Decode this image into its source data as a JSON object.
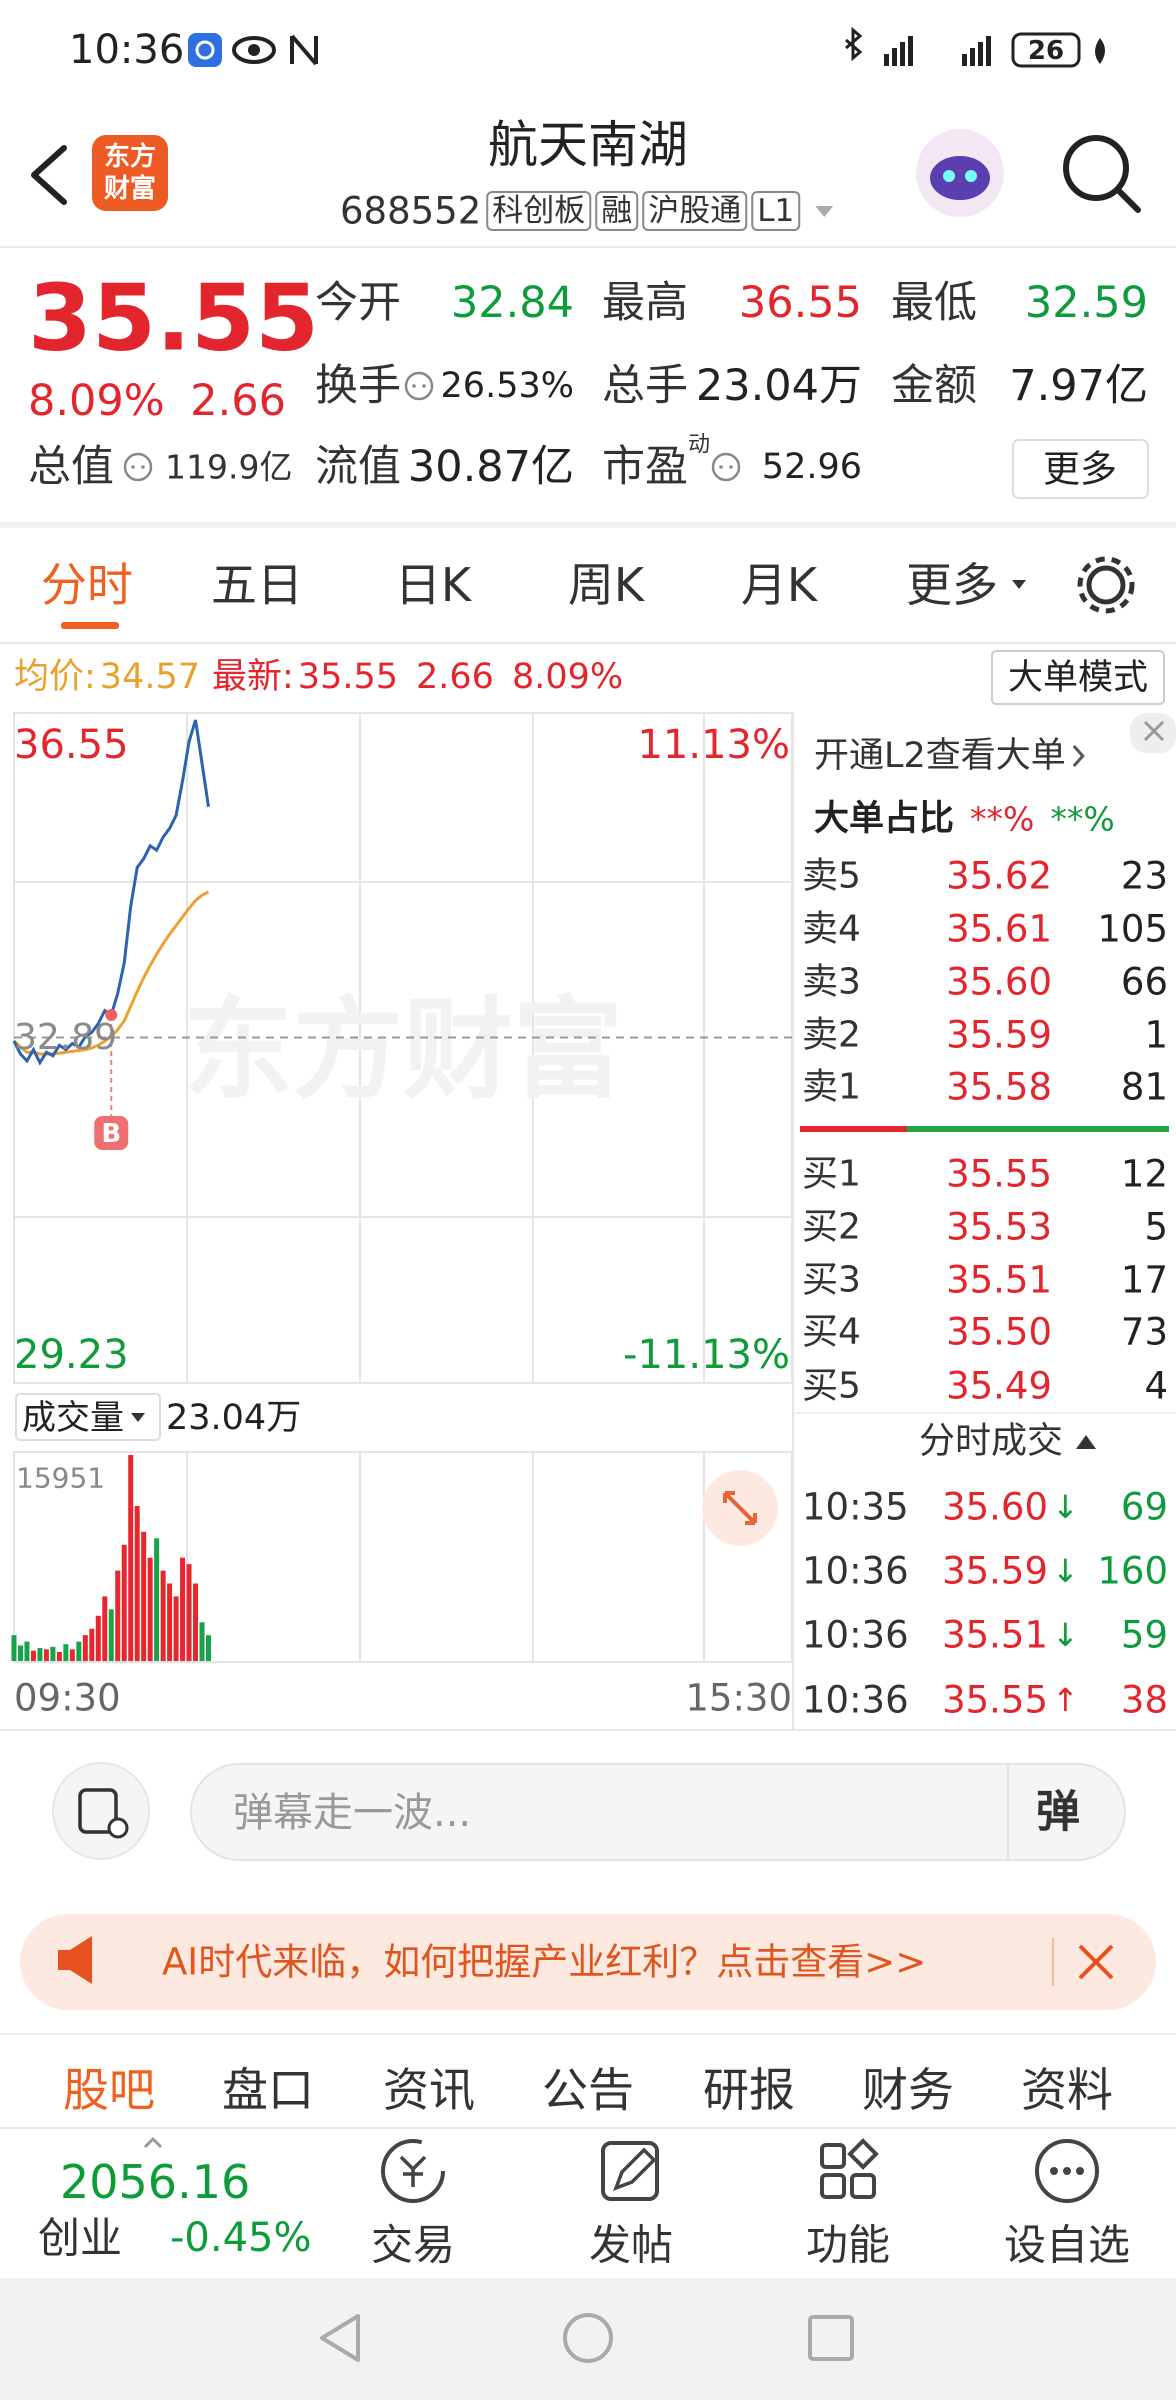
{
  "status_bar": {
    "time": "10:36",
    "battery": "26"
  },
  "header": {
    "logo": [
      "东方",
      "财富"
    ],
    "title": "航天南湖",
    "code": "688552",
    "tags": [
      "科创板",
      "融",
      "沪股通",
      "L1"
    ]
  },
  "quote": {
    "price": "35.55",
    "change_pct": "8.09%",
    "change": "2.66",
    "total_value_label": "总值",
    "total_value": "119.9亿",
    "fields": [
      {
        "label": "今开",
        "value": "32.84",
        "color": "#0e9b3a"
      },
      {
        "label": "最高",
        "value": "36.55",
        "color": "#e3262d"
      },
      {
        "label": "最低",
        "value": "32.59",
        "color": "#0e9b3a"
      },
      {
        "label": "换手",
        "value": "26.53%",
        "color": "#222222",
        "info_icon": true
      },
      {
        "label": "总手",
        "value": "23.04万",
        "color": "#222222"
      },
      {
        "label": "金额",
        "value": "7.97亿",
        "color": "#222222"
      },
      {
        "label": "流值",
        "value": "30.87亿",
        "color": "#222222"
      },
      {
        "label": "市盈",
        "sup": "动",
        "value": "52.96",
        "color": "#222222",
        "info_icon": true
      }
    ],
    "more": "更多"
  },
  "tabs": [
    "分时",
    "五日",
    "日K",
    "周K",
    "月K",
    "更多"
  ],
  "info": {
    "avg_label": "均价:",
    "avg": "34.57",
    "latest_label": "最新:",
    "latest": "35.55",
    "change": "2.66",
    "change_pct": "8.09%",
    "mode_button": "大单模式"
  },
  "intraday": {
    "high_label": "36.55",
    "low_label": "29.23",
    "high_pct": "11.13%",
    "low_pct": "-11.13%",
    "prev_close_label": "32.89",
    "watermark": "东方财富",
    "marker": "B",
    "ylim": [
      29.23,
      36.55
    ],
    "prev_close": 32.89,
    "price": [
      32.85,
      32.7,
      32.62,
      32.75,
      32.6,
      32.72,
      32.68,
      32.8,
      32.75,
      32.82,
      32.78,
      32.9,
      32.95,
      33.05,
      33.2,
      33.15,
      33.4,
      33.75,
      34.4,
      34.85,
      34.95,
      35.1,
      35.05,
      35.2,
      35.3,
      35.45,
      35.85,
      36.3,
      36.55,
      36.05,
      35.55
    ],
    "average": [
      32.85,
      32.78,
      32.72,
      32.72,
      32.7,
      32.7,
      32.7,
      32.71,
      32.72,
      32.73,
      32.74,
      32.75,
      32.77,
      32.8,
      32.85,
      32.9,
      32.98,
      33.08,
      33.25,
      33.42,
      33.58,
      33.72,
      33.85,
      33.97,
      34.08,
      34.18,
      34.28,
      34.38,
      34.47,
      34.53,
      34.57
    ],
    "volume_label": "成交量",
    "volume_total": "23.04万",
    "volume_max_label": "15951",
    "volume_ylim": [
      0,
      15951
    ],
    "volume": [
      2000,
      1200,
      1500,
      800,
      1000,
      900,
      1100,
      700,
      1300,
      900,
      1500,
      2000,
      2500,
      3500,
      5000,
      4000,
      7000,
      9000,
      15951,
      12000,
      10000,
      8000,
      9500,
      7000,
      6000,
      5000,
      8000,
      7500,
      6000,
      3000,
      2000
    ],
    "time_start": "09:30",
    "time_end": "15:30"
  },
  "order_book": {
    "link": "开通L2查看大单",
    "ratio_label": "大单占比",
    "ratio_sell": "**%",
    "ratio_buy": "**%",
    "asks": [
      {
        "label": "卖5",
        "price": "35.62",
        "qty": "23"
      },
      {
        "label": "卖4",
        "price": "35.61",
        "qty": "105"
      },
      {
        "label": "卖3",
        "price": "35.60",
        "qty": "66"
      },
      {
        "label": "卖2",
        "price": "35.59",
        "qty": "1"
      },
      {
        "label": "卖1",
        "price": "35.58",
        "qty": "81"
      }
    ],
    "bids": [
      {
        "label": "买1",
        "price": "35.55",
        "qty": "12"
      },
      {
        "label": "买2",
        "price": "35.53",
        "qty": "5"
      },
      {
        "label": "买3",
        "price": "35.51",
        "qty": "17"
      },
      {
        "label": "买4",
        "price": "35.50",
        "qty": "73"
      },
      {
        "label": "买5",
        "price": "35.49",
        "qty": "4"
      }
    ],
    "trades_title": "分时成交",
    "trades": [
      {
        "time": "10:35",
        "price": "35.60",
        "dir": "↓",
        "qty": "69",
        "color": "#0e9b3a"
      },
      {
        "time": "10:36",
        "price": "35.59",
        "dir": "↓",
        "qty": "160",
        "color": "#0e9b3a"
      },
      {
        "time": "10:36",
        "price": "35.51",
        "dir": "↓",
        "qty": "59",
        "color": "#0e9b3a"
      },
      {
        "time": "10:36",
        "price": "35.55",
        "dir": "↑",
        "qty": "38",
        "color": "#e3262d"
      }
    ]
  },
  "comment": {
    "placeholder": "弹幕走一波...",
    "send": "弹"
  },
  "banner": {
    "text": "AI时代来临，如何把握产业红利？点击查看>>"
  },
  "bottom_tabs": [
    "股吧",
    "盘口",
    "资讯",
    "公告",
    "研报",
    "财务",
    "资料"
  ],
  "index": {
    "value": "2056.16",
    "name": "创业",
    "change": "-0.45%"
  },
  "toolbar": [
    "交易",
    "发帖",
    "功能",
    "设自选"
  ]
}
